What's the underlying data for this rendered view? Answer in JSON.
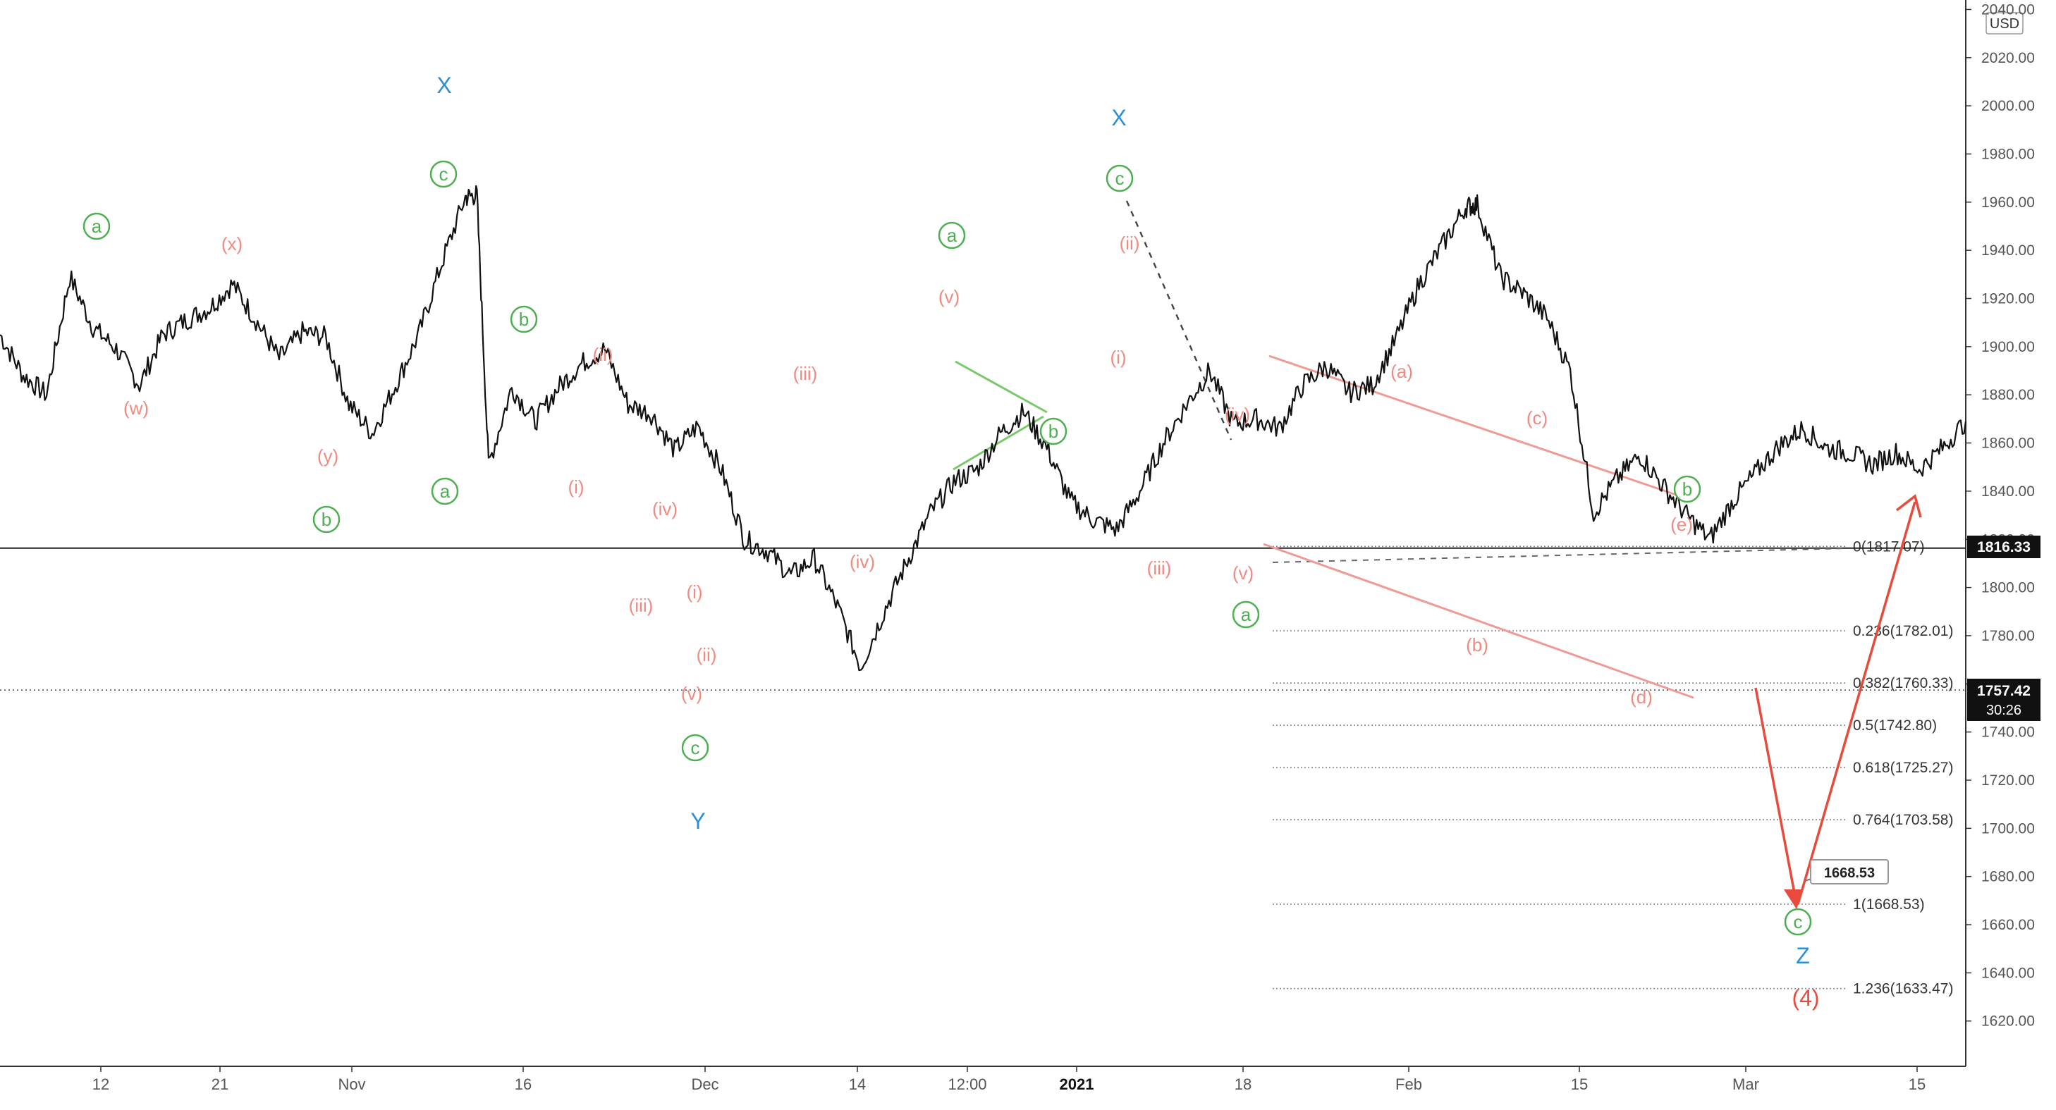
{
  "chart_data": {
    "type": "line",
    "currency": "USD",
    "y_axis": {
      "min": 1605,
      "max": 2041,
      "step": 20,
      "ticks": [
        "2040.00",
        "2020.00",
        "2000.00",
        "1980.00",
        "1960.00",
        "1940.00",
        "1920.00",
        "1900.00",
        "1880.00",
        "1860.00",
        "1840.00",
        "1820.00",
        "1800.00",
        "1780.00",
        "1760.00",
        "1740.00",
        "1720.00",
        "1700.00",
        "1680.00",
        "1660.00",
        "1640.00",
        "1620.00"
      ]
    },
    "x_axis": {
      "ticks": [
        "12",
        "21",
        "Nov",
        "16",
        "Dec",
        "14",
        "12:00",
        "2021",
        "18",
        "Feb",
        "15",
        "Mar",
        "15"
      ],
      "bold": [
        "2021"
      ],
      "range": [
        "2020-10-06",
        "2021-03-24"
      ]
    },
    "price_series": [
      [
        "2020-10-06",
        1905
      ],
      [
        "2020-10-08",
        1888
      ],
      [
        "2020-10-10",
        1880
      ],
      [
        "2020-10-12",
        1929
      ],
      [
        "2020-10-14",
        1908
      ],
      [
        "2020-10-16",
        1899
      ],
      [
        "2020-10-18",
        1884
      ],
      [
        "2020-10-20",
        1905
      ],
      [
        "2020-10-22",
        1911
      ],
      [
        "2020-10-24",
        1916
      ],
      [
        "2020-10-26",
        1926
      ],
      [
        "2020-10-28",
        1911
      ],
      [
        "2020-10-30",
        1895
      ],
      [
        "2020-11-01",
        1906
      ],
      [
        "2020-11-03",
        1904
      ],
      [
        "2020-11-05",
        1876
      ],
      [
        "2020-11-07",
        1864
      ],
      [
        "2020-11-09",
        1884
      ],
      [
        "2020-11-11",
        1905
      ],
      [
        "2020-11-13",
        1935
      ],
      [
        "2020-11-15",
        1962
      ],
      [
        "2020-11-16",
        1963
      ],
      [
        "2020-11-17",
        1851
      ],
      [
        "2020-11-19",
        1883
      ],
      [
        "2020-11-21",
        1869
      ],
      [
        "2020-11-23",
        1883
      ],
      [
        "2020-11-25",
        1893
      ],
      [
        "2020-11-27",
        1899
      ],
      [
        "2020-11-29",
        1876
      ],
      [
        "2020-12-01",
        1872
      ],
      [
        "2020-12-03",
        1857
      ],
      [
        "2020-12-05",
        1867
      ],
      [
        "2020-12-07",
        1849
      ],
      [
        "2020-12-09",
        1820
      ],
      [
        "2020-12-11",
        1815
      ],
      [
        "2020-12-13",
        1805
      ],
      [
        "2020-12-15",
        1812
      ],
      [
        "2020-12-17",
        1792
      ],
      [
        "2020-12-19",
        1767
      ],
      [
        "2020-12-21",
        1790
      ],
      [
        "2020-12-23",
        1811
      ],
      [
        "2020-12-25",
        1831
      ],
      [
        "2020-12-27",
        1844
      ],
      [
        "2020-12-29",
        1849
      ],
      [
        "2020-12-31",
        1864
      ],
      [
        "2021-01-02",
        1873
      ],
      [
        "2021-01-04",
        1858
      ],
      [
        "2021-01-06",
        1836
      ],
      [
        "2021-01-08",
        1828
      ],
      [
        "2021-01-10",
        1824
      ],
      [
        "2021-01-12",
        1840
      ],
      [
        "2021-01-14",
        1860
      ],
      [
        "2021-01-16",
        1876
      ],
      [
        "2021-01-18",
        1890
      ],
      [
        "2021-01-20",
        1868
      ],
      [
        "2021-01-22",
        1870
      ],
      [
        "2021-01-24",
        1866
      ],
      [
        "2021-01-26",
        1884
      ],
      [
        "2021-01-28",
        1892
      ],
      [
        "2021-01-30",
        1881
      ],
      [
        "2021-02-01",
        1884
      ],
      [
        "2021-02-03",
        1903
      ],
      [
        "2021-02-05",
        1926
      ],
      [
        "2021-02-07",
        1942
      ],
      [
        "2021-02-09",
        1958
      ],
      [
        "2021-02-10",
        1959
      ],
      [
        "2021-02-12",
        1929
      ],
      [
        "2021-02-14",
        1922
      ],
      [
        "2021-02-16",
        1912
      ],
      [
        "2021-02-18",
        1890
      ],
      [
        "2021-02-20",
        1831
      ],
      [
        "2021-02-22",
        1845
      ],
      [
        "2021-02-24",
        1855
      ],
      [
        "2021-02-26",
        1842
      ],
      [
        "2021-02-28",
        1830
      ],
      [
        "2021-03-02",
        1820
      ],
      [
        "2021-03-04",
        1836
      ],
      [
        "2021-03-06",
        1848
      ],
      [
        "2021-03-08",
        1859
      ],
      [
        "2021-03-10",
        1866
      ],
      [
        "2021-03-12",
        1858
      ],
      [
        "2021-03-14",
        1856
      ],
      [
        "2021-03-16",
        1851
      ],
      [
        "2021-03-18",
        1856
      ],
      [
        "2021-03-20",
        1849
      ],
      [
        "2021-03-22",
        1858
      ],
      [
        "2021-03-24",
        1869
      ]
    ],
    "current_price": {
      "value": 1757.42,
      "label": "1757.42",
      "timer": "30:26"
    },
    "hline": {
      "value": 1816.33,
      "label": "1816.33"
    },
    "fib_levels": [
      {
        "ratio": "0",
        "price": "1817.07",
        "value": 1817.07
      },
      {
        "ratio": "0.236",
        "price": "1782.01",
        "value": 1782.01
      },
      {
        "ratio": "0.382",
        "price": "1760.33",
        "value": 1760.33
      },
      {
        "ratio": "0.5",
        "price": "1742.80",
        "value": 1742.8
      },
      {
        "ratio": "0.618",
        "price": "1725.27",
        "value": 1725.27
      },
      {
        "ratio": "0.764",
        "price": "1703.58",
        "value": 1703.58
      },
      {
        "ratio": "1",
        "price": "1668.53",
        "value": 1668.53
      },
      {
        "ratio": "1.236",
        "price": "1633.47",
        "value": 1633.47
      }
    ],
    "target_callout": {
      "label": "1668.53",
      "value": 1668.53
    },
    "wave_labels": {
      "blue": [
        "X",
        "X",
        "Y",
        "Z"
      ],
      "circled_green": [
        "a",
        "b",
        "c",
        "a",
        "b",
        "c",
        "a",
        "b",
        "c",
        "a",
        "b",
        "c"
      ],
      "salmon": [
        "(w)",
        "(x)",
        "(y)",
        "(i)",
        "(ii)",
        "(iii)",
        "(iv)",
        "(v)",
        "(i)",
        "(ii)",
        "(iii)",
        "(iv)",
        "(v)",
        "(i)",
        "(ii)",
        "(iii)",
        "(iv)",
        "(v)",
        "(a)",
        "(b)",
        "(c)",
        "(d)",
        "(e)"
      ],
      "red": [
        "(4)"
      ]
    }
  },
  "colors": {
    "price": "#111111",
    "blue_label": "#2a8fd6",
    "green_label": "#4caf50",
    "salmon_label": "#f08a80",
    "red_arrow": "#e84a3c",
    "grid_text": "#555555",
    "green_line": "#7bc86b",
    "channel": "#f09a95"
  }
}
